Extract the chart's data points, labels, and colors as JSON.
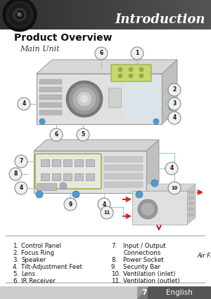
{
  "title": "Introduction",
  "section_title": "Product Overview",
  "subsection": "Main Unit",
  "bg_color": "#ffffff",
  "header_text_color": "#ffffff",
  "footer_text": "English",
  "footer_page": "7",
  "legend_items_left": [
    [
      "1.",
      "Control Panel"
    ],
    [
      "2.",
      "Focus Ring"
    ],
    [
      "3.",
      "Speaker"
    ],
    [
      "4.",
      "Tilt-Adjustment Feet"
    ],
    [
      "5.",
      "Lens"
    ],
    [
      "6.",
      "IR Receiver"
    ]
  ],
  "legend_items_right": [
    [
      "7.",
      "Input / Output"
    ],
    [
      "",
      "Connections"
    ],
    [
      "8.",
      "Power Socket"
    ],
    [
      "9.",
      "Security Bar"
    ],
    [
      "10.",
      "Ventilation (inlet)"
    ],
    [
      "11.",
      "Ventilation (outlet)"
    ]
  ],
  "air_flow_label": "Air Flow",
  "callout_color": "#88ccdd",
  "red_arrow_color": "#cc2222"
}
